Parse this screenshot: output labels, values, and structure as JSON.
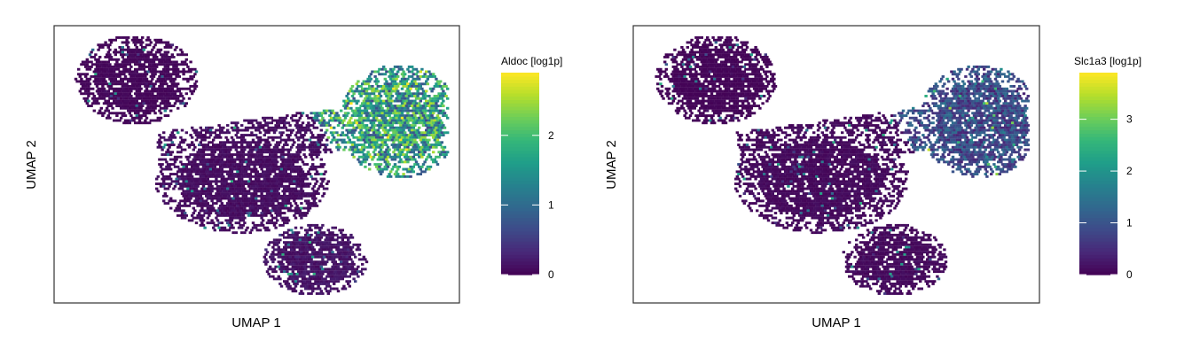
{
  "chart_data": [
    {
      "type": "heatmap",
      "subtype": "hexbin-umap",
      "title": "",
      "xlabel": "UMAP 1",
      "ylabel": "UMAP 2",
      "colorbar": {
        "title": "Aldoc [log1p]",
        "colormap": "viridis",
        "range": [
          0,
          2.9
        ],
        "ticks": [
          {
            "value": 0,
            "label": "0"
          },
          {
            "value": 1,
            "label": "1"
          },
          {
            "value": 2,
            "label": "2"
          }
        ]
      },
      "regions": [
        {
          "name": "upper-left lobe",
          "cx": 0.2,
          "cy": 0.81,
          "rx": 0.14,
          "ry": 0.15,
          "value_mean": 0.05
        },
        {
          "name": "central body",
          "cx": 0.46,
          "cy": 0.45,
          "rx": 0.2,
          "ry": 0.18,
          "value_mean": 0.1
        },
        {
          "name": "lower lobe",
          "cx": 0.64,
          "cy": 0.16,
          "rx": 0.12,
          "ry": 0.12,
          "value_mean": 0.15
        },
        {
          "name": "upper-right lobe",
          "cx": 0.85,
          "cy": 0.66,
          "rx": 0.14,
          "ry": 0.19,
          "value_mean": 1.6
        }
      ],
      "grid": false,
      "legend_position": "right"
    },
    {
      "type": "heatmap",
      "subtype": "hexbin-umap",
      "title": "",
      "xlabel": "UMAP 1",
      "ylabel": "UMAP 2",
      "colorbar": {
        "title": "Slc1a3 [log1p]",
        "colormap": "viridis",
        "range": [
          0,
          3.9
        ],
        "ticks": [
          {
            "value": 0,
            "label": "0"
          },
          {
            "value": 1,
            "label": "1"
          },
          {
            "value": 2,
            "label": "2"
          },
          {
            "value": 3,
            "label": "3"
          }
        ]
      },
      "regions": [
        {
          "name": "upper-left lobe",
          "cx": 0.2,
          "cy": 0.81,
          "rx": 0.14,
          "ry": 0.15,
          "value_mean": 0.05
        },
        {
          "name": "central body",
          "cx": 0.46,
          "cy": 0.45,
          "rx": 0.2,
          "ry": 0.18,
          "value_mean": 0.1
        },
        {
          "name": "lower lobe",
          "cx": 0.64,
          "cy": 0.16,
          "rx": 0.12,
          "ry": 0.12,
          "value_mean": 0.1
        },
        {
          "name": "upper-right lobe",
          "cx": 0.85,
          "cy": 0.66,
          "rx": 0.14,
          "ry": 0.19,
          "value_mean": 0.9
        }
      ],
      "grid": false,
      "legend_position": "right"
    }
  ]
}
